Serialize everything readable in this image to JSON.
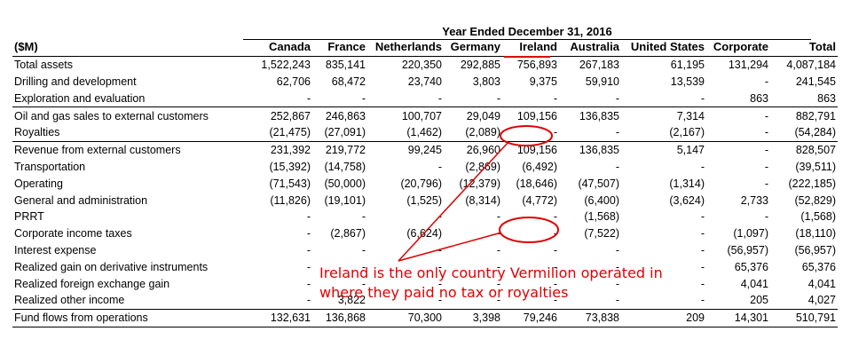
{
  "header": {
    "period": "Year Ended December 31, 2016",
    "columns": [
      "($M)",
      "Canada",
      "France",
      "Netherlands",
      "Germany",
      "Ireland",
      "Australia",
      "United States",
      "Corporate",
      "Total"
    ]
  },
  "rows": [
    {
      "label": "Total assets",
      "values": [
        "1,522,243",
        "835,141",
        "220,350",
        "292,885",
        "756,893",
        "267,183",
        "61,195",
        "131,294",
        "4,087,184"
      ]
    },
    {
      "label": "Drilling and development",
      "values": [
        "62,706",
        "68,472",
        "23,740",
        "3,803",
        "9,375",
        "59,910",
        "13,539",
        "-",
        "241,545"
      ]
    },
    {
      "label": "Exploration and evaluation",
      "values": [
        "-",
        "-",
        "-",
        "-",
        "-",
        "-",
        "-",
        "863",
        "863"
      ]
    },
    {
      "label": "Oil and gas sales to external customers",
      "values": [
        "252,867",
        "246,863",
        "100,707",
        "29,049",
        "109,156",
        "136,835",
        "7,314",
        "-",
        "882,791"
      ]
    },
    {
      "label": "Royalties",
      "values": [
        "(21,475)",
        "(27,091)",
        "(1,462)",
        "(2,089)",
        "-",
        "-",
        "(2,167)",
        "-",
        "(54,284)"
      ]
    },
    {
      "label": "Revenue from external customers",
      "values": [
        "231,392",
        "219,772",
        "99,245",
        "26,960",
        "109,156",
        "136,835",
        "5,147",
        "-",
        "828,507"
      ]
    },
    {
      "label": "Transportation",
      "values": [
        "(15,392)",
        "(14,758)",
        "-",
        "(2,869)",
        "(6,492)",
        "-",
        "-",
        "-",
        "(39,511)"
      ]
    },
    {
      "label": "Operating",
      "values": [
        "(71,543)",
        "(50,000)",
        "(20,796)",
        "(12,379)",
        "(18,646)",
        "(47,507)",
        "(1,314)",
        "-",
        "(222,185)"
      ]
    },
    {
      "label": "General and administration",
      "values": [
        "(11,826)",
        "(19,101)",
        "(1,525)",
        "(8,314)",
        "(4,772)",
        "(6,400)",
        "(3,624)",
        "2,733",
        "(52,829)"
      ]
    },
    {
      "label": "PRRT",
      "values": [
        "-",
        "-",
        "-",
        "-",
        "-",
        "(1,568)",
        "-",
        "-",
        "(1,568)"
      ]
    },
    {
      "label": "Corporate income taxes",
      "values": [
        "-",
        "(2,867)",
        "(6,624)",
        "-",
        "-",
        "(7,522)",
        "-",
        "(1,097)",
        "(18,110)"
      ]
    },
    {
      "label": "Interest expense",
      "values": [
        "-",
        "-",
        "-",
        "-",
        "-",
        "-",
        "-",
        "(56,957)",
        "(56,957)"
      ]
    },
    {
      "label": "Realized gain on derivative instruments",
      "values": [
        "-",
        "-",
        "-",
        "-",
        "-",
        "-",
        "-",
        "65,376",
        "65,376"
      ]
    },
    {
      "label": "Realized foreign exchange gain",
      "values": [
        "-",
        "-",
        "-",
        "-",
        "-",
        "-",
        "-",
        "4,041",
        "4,041"
      ]
    },
    {
      "label": "Realized other income",
      "values": [
        "-",
        "3,822",
        "-",
        "-",
        "-",
        "-",
        "-",
        "205",
        "4,027"
      ]
    },
    {
      "label": "Fund flows from operations",
      "values": [
        "132,631",
        "136,868",
        "70,300",
        "3,398",
        "79,246",
        "73,838",
        "209",
        "14,301",
        "510,791"
      ]
    }
  ],
  "annotation": {
    "line1": "Ireland is the only country Vermilion operated in",
    "line2": "where they paid no tax or royalties",
    "color": "#e00000"
  }
}
